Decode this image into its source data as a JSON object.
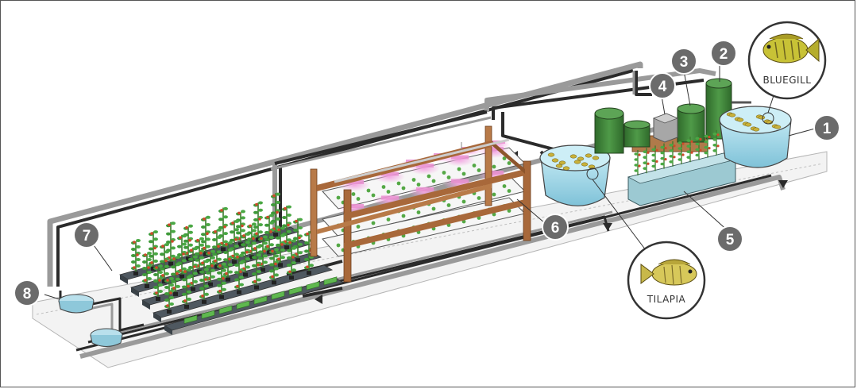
{
  "diagram": {
    "numbers": [
      "1",
      "2",
      "3",
      "4",
      "5",
      "6",
      "7",
      "8"
    ],
    "fish": {
      "bluegill": {
        "label": "BLUEGILL"
      },
      "tilapia": {
        "label": "TILAPIA"
      }
    },
    "colors": {
      "pipe_dark": "#2b2b2b",
      "pipe_grey": "#9a9a9a",
      "floor": "#efefef",
      "tank_water": "#9fd6e6",
      "tank_green": "#3f7d3a",
      "wood": "#a8683a",
      "grow_light": "#e98fd0",
      "number_badge": "#6b6b6b",
      "plant_green": "#3f9a3a",
      "tomato": "#d04a2a"
    }
  }
}
